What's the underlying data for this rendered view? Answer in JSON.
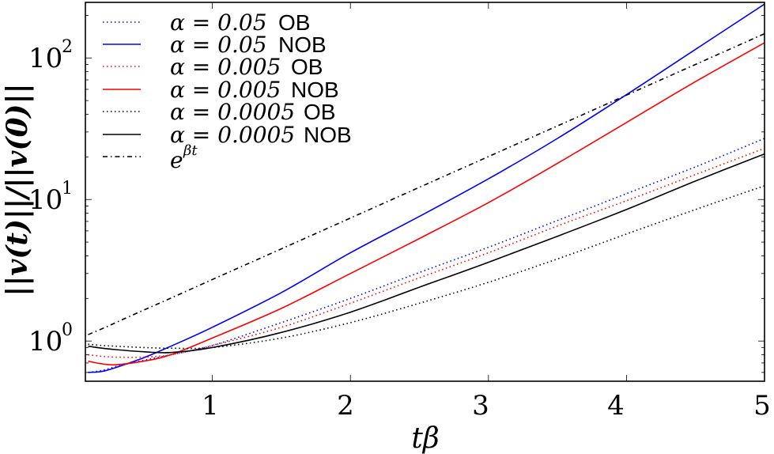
{
  "chart_data": {
    "type": "line",
    "title": "",
    "xlabel": "tβ",
    "ylabel": "||v(t)||/||v(0)||",
    "xscale": "linear",
    "yscale": "log",
    "xlim": [
      0.08,
      5.0
    ],
    "ylim": [
      0.52,
      247
    ],
    "grid": false,
    "legend_position": "upper left",
    "x_ticks": [
      1,
      2,
      3,
      4,
      5
    ],
    "x_tick_labels": [
      "1",
      "2",
      "3",
      "4",
      "5"
    ],
    "y_ticks": [
      1,
      10,
      100
    ],
    "y_tick_labels": [
      "10^0",
      "10^1",
      "10^2"
    ],
    "x": [
      0.1,
      0.2,
      0.3,
      0.5,
      0.7,
      1.0,
      1.5,
      2.0,
      2.5,
      3.0,
      3.5,
      4.0,
      4.5,
      5.0
    ],
    "series": [
      {
        "name": "α = 0.05 OB",
        "color": "#0000ff",
        "style": "dotted",
        "values": [
          0.6,
          0.62,
          0.66,
          0.73,
          0.8,
          0.93,
          1.35,
          2.0,
          3.05,
          4.6,
          7.1,
          11,
          17,
          27
        ]
      },
      {
        "name": "α = 0.05 NOB",
        "color": "#0000ff",
        "style": "solid",
        "values": [
          0.6,
          0.61,
          0.65,
          0.76,
          0.92,
          1.25,
          2.2,
          4.2,
          7.6,
          14,
          27,
          55,
          115,
          240
        ]
      },
      {
        "name": "α = 0.005 OB",
        "color": "#ff0000",
        "style": "dotted",
        "values": [
          0.8,
          0.78,
          0.77,
          0.77,
          0.8,
          0.93,
          1.25,
          1.85,
          2.8,
          4.2,
          6.5,
          9.8,
          15,
          23
        ]
      },
      {
        "name": "α = 0.005 NOB",
        "color": "#ff0000",
        "style": "solid",
        "values": [
          0.72,
          0.69,
          0.68,
          0.72,
          0.8,
          1.05,
          1.7,
          3.0,
          5.3,
          9.5,
          18,
          35,
          68,
          128
        ]
      },
      {
        "name": "α = 0.0005 OB",
        "color": "#000000",
        "style": "dotted",
        "values": [
          0.95,
          0.93,
          0.92,
          0.9,
          0.89,
          0.9,
          1.05,
          1.35,
          1.85,
          2.6,
          3.8,
          5.7,
          8.5,
          12.5
        ]
      },
      {
        "name": "α = 0.0005 NOB",
        "color": "#000000",
        "style": "solid",
        "values": [
          0.92,
          0.89,
          0.87,
          0.84,
          0.83,
          0.9,
          1.15,
          1.6,
          2.4,
          3.6,
          5.5,
          8.5,
          13.5,
          21
        ]
      },
      {
        "name": "e^{βt}",
        "color": "#000000",
        "style": "dashdot",
        "values": [
          1.11,
          1.22,
          1.35,
          1.65,
          2.01,
          2.72,
          4.48,
          7.39,
          12.2,
          20.1,
          33.1,
          54.6,
          90.0,
          148.4
        ]
      }
    ]
  },
  "legend": {
    "entries": [
      {
        "math": "α = 0.05",
        "text": "OB"
      },
      {
        "math": "α = 0.05",
        "text": "NOB"
      },
      {
        "math": "α = 0.005",
        "text": "OB"
      },
      {
        "math": "α = 0.005",
        "text": "NOB"
      },
      {
        "math": "α = 0.0005",
        "text": "OB"
      },
      {
        "math": "α = 0.0005",
        "text": "NOB"
      },
      {
        "math": "e",
        "sup": "βt",
        "text": ""
      }
    ]
  },
  "axes": {
    "x_label": "tβ",
    "y_label": "||v(t)||/||v(0)||",
    "x_tick_labels": [
      "1",
      "2",
      "3",
      "4",
      "5"
    ],
    "y_tick_labels": [
      {
        "base": "10",
        "exp": "2"
      },
      {
        "base": "10",
        "exp": "1"
      },
      {
        "base": "10",
        "exp": "0"
      }
    ]
  }
}
